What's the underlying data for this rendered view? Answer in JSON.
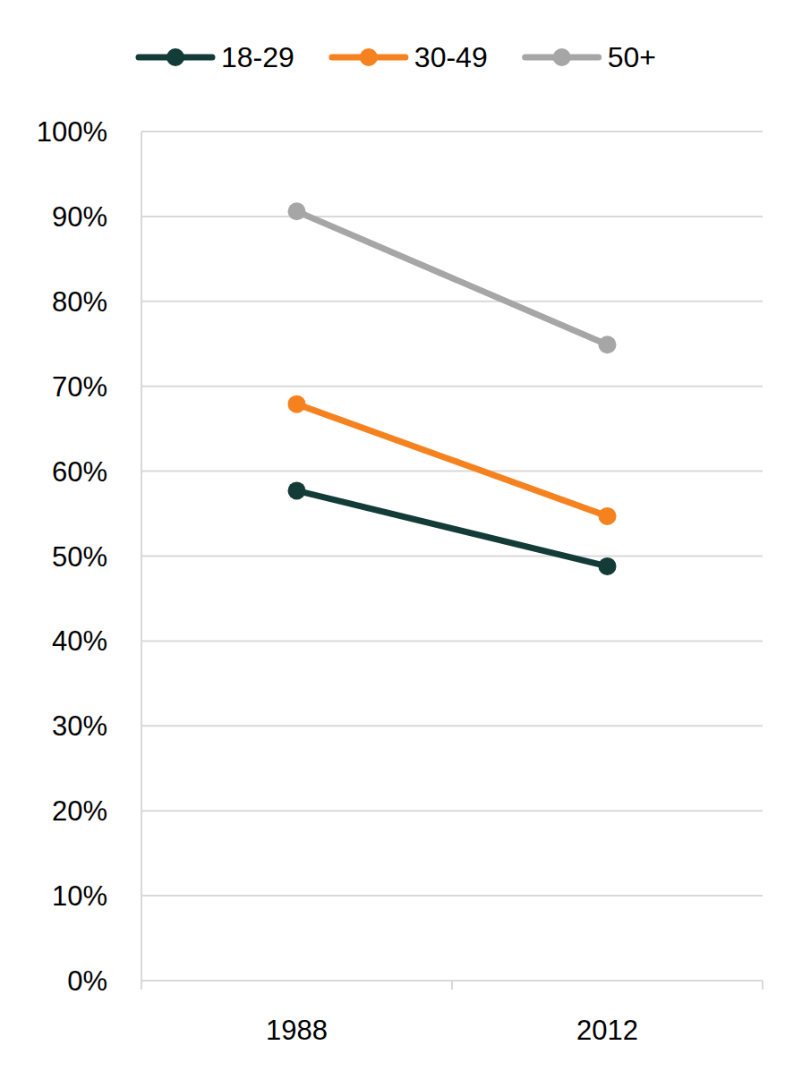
{
  "chart_data": {
    "type": "line",
    "categories": [
      "1988",
      "2012"
    ],
    "series": [
      {
        "name": "18-29",
        "color": "#133b38",
        "values": [
          57.7,
          48.8
        ]
      },
      {
        "name": "30-49",
        "color": "#f5821f",
        "values": [
          67.9,
          54.7
        ]
      },
      {
        "name": "50+",
        "color": "#a6a6a6",
        "values": [
          90.6,
          74.9
        ]
      }
    ],
    "ylim": [
      0,
      100
    ],
    "yticks": [
      {
        "value": 0,
        "label": "0%"
      },
      {
        "value": 10,
        "label": "10%"
      },
      {
        "value": 20,
        "label": "20%"
      },
      {
        "value": 30,
        "label": "30%"
      },
      {
        "value": 40,
        "label": "40%"
      },
      {
        "value": 50,
        "label": "50%"
      },
      {
        "value": 60,
        "label": "60%"
      },
      {
        "value": 70,
        "label": "70%"
      },
      {
        "value": 80,
        "label": "80%"
      },
      {
        "value": 90,
        "label": "90%"
      },
      {
        "value": 100,
        "label": "100%"
      }
    ],
    "grid": true,
    "legend": "top",
    "marker": "circle"
  }
}
